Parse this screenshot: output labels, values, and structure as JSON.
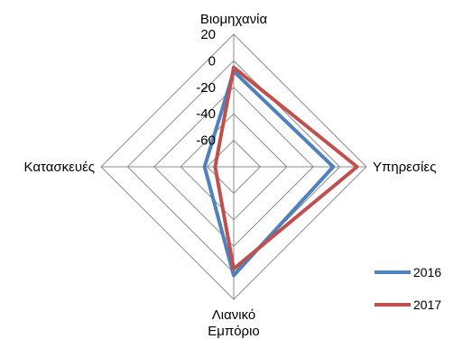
{
  "chart_data": {
    "type": "radar",
    "axes": [
      "Βιομηχανία",
      "Υπηρεσίες",
      "Λιανικό Εμπόριο",
      "Κατασκευές"
    ],
    "axis_label_lines": [
      [
        "Βιομηχανία"
      ],
      [
        "Υπηρεσίες"
      ],
      [
        "Λιανικό",
        "Εμπόριο"
      ],
      [
        "Κατασκευές"
      ]
    ],
    "rlim": [
      -80,
      20
    ],
    "ticks": [
      20,
      0,
      -20,
      -40,
      -60
    ],
    "tick_labels": [
      "20",
      "0",
      "-20",
      "-40",
      "-60"
    ],
    "grid": true,
    "legend_position": "bottom-right",
    "series": [
      {
        "name": "2016",
        "color": "#4F81BD",
        "values": [
          -8,
          -5,
          2,
          -58
        ]
      },
      {
        "name": "2017",
        "color": "#C0504D",
        "values": [
          -5,
          13,
          -3,
          -66
        ]
      }
    ]
  }
}
